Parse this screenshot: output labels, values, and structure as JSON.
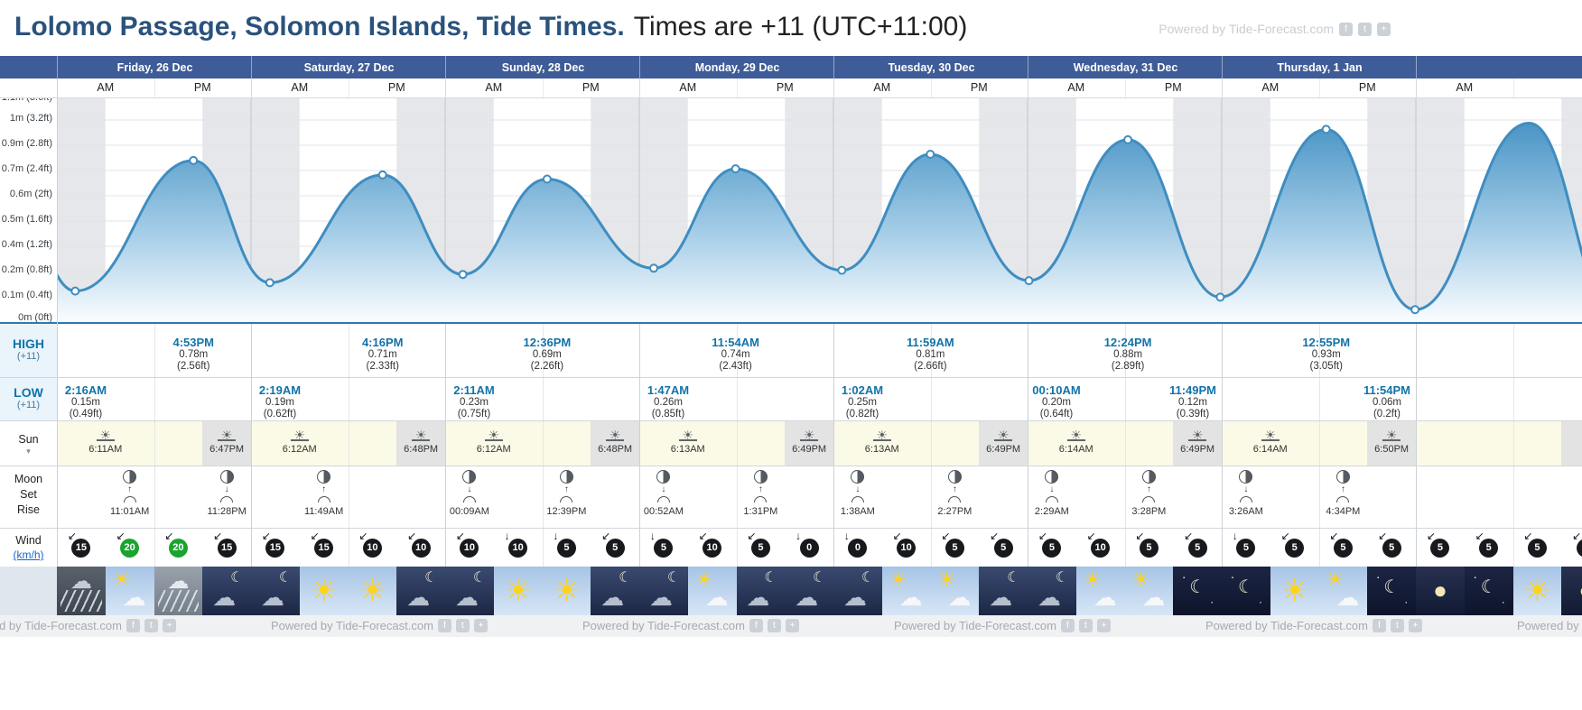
{
  "page": {
    "title_main": "Lolomo Passage, Solomon Islands, Tide Times.",
    "title_suffix": "Times are +11 (UTC+11:00)",
    "watermark": "Powered by Tide-Forecast.com"
  },
  "colors": {
    "header_bg": "#3e5c97",
    "accent_blue": "#1173a9",
    "curve_blue": "#3f8dc0",
    "wind_green": "#1aa42f",
    "wind_dark": "#17191c",
    "night_band": "#e6e7ea",
    "sun_row_bg": "#fbfae6",
    "sun_night_seg": "#e3e3e3",
    "tide_label_bg": "#e9f4fb"
  },
  "days": [
    "Friday, 26 Dec",
    "Saturday, 27 Dec",
    "Sunday, 28 Dec",
    "Monday, 29 Dec",
    "Tuesday, 30 Dec",
    "Wednesday, 31 Dec",
    "Thursday, 1 Jan"
  ],
  "ampm_labels": [
    "AM",
    "PM"
  ],
  "chart_data": {
    "type": "area",
    "title": "Tide height curve for Lolomo Passage",
    "xlabel": "Time (7 days, AM/PM per day)",
    "ylabel": "Tide height",
    "ylim_m": [
      0,
      1.1
    ],
    "days_shown": 7.86,
    "grid": true,
    "axis_labels": [
      "1.1m (3.6ft)",
      "1m (3.2ft)",
      "0.9m (2.8ft)",
      "0.7m (2.4ft)",
      "0.6m (2ft)",
      "0.5m (1.6ft)",
      "0.4m (1.2ft)",
      "0.2m (0.8ft)",
      "0.1m (0.4ft)",
      "0m (0ft)"
    ],
    "extremes": [
      {
        "day": -1,
        "hour": 17.5,
        "height_m": 0.76,
        "kind": "high",
        "time": "",
        "inferred": true
      },
      {
        "day": 0,
        "hour": 2.267,
        "height_m": 0.15,
        "kind": "low",
        "time": "2:16AM"
      },
      {
        "day": 0,
        "hour": 16.883,
        "height_m": 0.78,
        "kind": "high",
        "time": "4:53PM"
      },
      {
        "day": 1,
        "hour": 2.317,
        "height_m": 0.19,
        "kind": "low",
        "time": "2:19AM"
      },
      {
        "day": 1,
        "hour": 16.267,
        "height_m": 0.71,
        "kind": "high",
        "time": "4:16PM"
      },
      {
        "day": 2,
        "hour": 2.183,
        "height_m": 0.23,
        "kind": "low",
        "time": "2:11AM"
      },
      {
        "day": 2,
        "hour": 12.6,
        "height_m": 0.69,
        "kind": "high",
        "time": "12:36PM"
      },
      {
        "day": 3,
        "hour": 1.783,
        "height_m": 0.26,
        "kind": "low",
        "time": "1:47AM"
      },
      {
        "day": 3,
        "hour": 11.9,
        "height_m": 0.74,
        "kind": "high",
        "time": "11:54AM"
      },
      {
        "day": 4,
        "hour": 1.033,
        "height_m": 0.25,
        "kind": "low",
        "time": "1:02AM"
      },
      {
        "day": 4,
        "hour": 11.983,
        "height_m": 0.81,
        "kind": "high",
        "time": "11:59AM"
      },
      {
        "day": 5,
        "hour": 0.167,
        "height_m": 0.2,
        "kind": "low",
        "time": "00:10AM"
      },
      {
        "day": 5,
        "hour": 12.4,
        "height_m": 0.88,
        "kind": "high",
        "time": "12:24PM"
      },
      {
        "day": 5,
        "hour": 23.817,
        "height_m": 0.12,
        "kind": "low",
        "time": "11:49PM"
      },
      {
        "day": 6,
        "hour": 12.917,
        "height_m": 0.93,
        "kind": "high",
        "time": "12:55PM"
      },
      {
        "day": 6,
        "hour": 23.9,
        "height_m": 0.06,
        "kind": "low",
        "time": "11:54PM"
      },
      {
        "day": 7,
        "hour": 14.0,
        "height_m": 0.96,
        "kind": "high",
        "time": "",
        "inferred": true
      },
      {
        "day": 7,
        "hour": 25.0,
        "height_m": 0.02,
        "kind": "low",
        "time": "",
        "inferred": true
      }
    ]
  },
  "tide_table": {
    "high_label": "HIGH",
    "low_label": "LOW",
    "tz": "(+11)",
    "high": [
      {
        "day": 0,
        "hour": 16.883,
        "time": "4:53PM",
        "height": "0.78m",
        "height_ft": "(2.56ft)"
      },
      {
        "day": 1,
        "hour": 16.267,
        "time": "4:16PM",
        "height": "0.71m",
        "height_ft": "(2.33ft)"
      },
      {
        "day": 2,
        "hour": 12.6,
        "time": "12:36PM",
        "height": "0.69m",
        "height_ft": "(2.26ft)"
      },
      {
        "day": 3,
        "hour": 11.9,
        "time": "11:54AM",
        "height": "0.74m",
        "height_ft": "(2.43ft)"
      },
      {
        "day": 4,
        "hour": 11.983,
        "time": "11:59AM",
        "height": "0.81m",
        "height_ft": "(2.66ft)"
      },
      {
        "day": 5,
        "hour": 12.4,
        "time": "12:24PM",
        "height": "0.88m",
        "height_ft": "(2.89ft)"
      },
      {
        "day": 6,
        "hour": 12.917,
        "time": "12:55PM",
        "height": "0.93m",
        "height_ft": "(3.05ft)"
      }
    ],
    "low": [
      {
        "day": 0,
        "hour": 2.267,
        "time": "2:16AM",
        "height": "0.15m",
        "height_ft": "(0.49ft)"
      },
      {
        "day": 1,
        "hour": 2.317,
        "time": "2:19AM",
        "height": "0.19m",
        "height_ft": "(0.62ft)"
      },
      {
        "day": 2,
        "hour": 2.183,
        "time": "2:11AM",
        "height": "0.23m",
        "height_ft": "(0.75ft)"
      },
      {
        "day": 3,
        "hour": 1.783,
        "time": "1:47AM",
        "height": "0.26m",
        "height_ft": "(0.85ft)"
      },
      {
        "day": 4,
        "hour": 1.033,
        "time": "1:02AM",
        "height": "0.25m",
        "height_ft": "(0.82ft)"
      },
      {
        "day": 5,
        "hour": 0.167,
        "time": "00:10AM",
        "height": "0.20m",
        "height_ft": "(0.64ft)"
      },
      {
        "day": 5,
        "hour": 23.817,
        "time": "11:49PM",
        "height": "0.12m",
        "height_ft": "(0.39ft)"
      },
      {
        "day": 6,
        "hour": 23.9,
        "time": "11:54PM",
        "height": "0.06m",
        "height_ft": "(0.2ft)"
      }
    ]
  },
  "sun": {
    "label": "Sun",
    "rise": [
      "6:11AM",
      "6:12AM",
      "6:12AM",
      "6:13AM",
      "6:13AM",
      "6:14AM",
      "6:14AM"
    ],
    "set": [
      "6:47PM",
      "6:48PM",
      "6:48PM",
      "6:49PM",
      "6:49PM",
      "6:49PM",
      "6:50PM"
    ]
  },
  "moon": {
    "labels": [
      "Moon",
      "Set",
      "Rise"
    ],
    "events": [
      {
        "day": 0,
        "quarter": 1,
        "time": "11:01AM",
        "kind": "rise"
      },
      {
        "day": 0,
        "quarter": 3,
        "time": "11:28PM",
        "kind": "set"
      },
      {
        "day": 1,
        "quarter": 1,
        "time": "11:49AM",
        "kind": "rise"
      },
      {
        "day": 2,
        "quarter": 0,
        "time": "00:09AM",
        "kind": "set"
      },
      {
        "day": 2,
        "quarter": 2,
        "time": "12:39PM",
        "kind": "rise"
      },
      {
        "day": 3,
        "quarter": 0,
        "time": "00:52AM",
        "kind": "set"
      },
      {
        "day": 3,
        "quarter": 2,
        "time": "1:31PM",
        "kind": "rise"
      },
      {
        "day": 4,
        "quarter": 0,
        "time": "1:38AM",
        "kind": "set"
      },
      {
        "day": 4,
        "quarter": 2,
        "time": "2:27PM",
        "kind": "rise"
      },
      {
        "day": 5,
        "quarter": 0,
        "time": "2:29AM",
        "kind": "set"
      },
      {
        "day": 5,
        "quarter": 2,
        "time": "3:28PM",
        "kind": "rise"
      },
      {
        "day": 6,
        "quarter": 0,
        "time": "3:26AM",
        "kind": "set"
      },
      {
        "day": 6,
        "quarter": 2,
        "time": "4:34PM",
        "kind": "rise"
      }
    ]
  },
  "wind": {
    "label": "Wind",
    "unit": "(km/h)",
    "values": [
      {
        "v": 15,
        "dir": "↙",
        "color": "dark"
      },
      {
        "v": 20,
        "dir": "↙",
        "color": "green"
      },
      {
        "v": 20,
        "dir": "↙",
        "color": "green"
      },
      {
        "v": 15,
        "dir": "↙",
        "color": "dark"
      },
      {
        "v": 15,
        "dir": "↙",
        "color": "dark"
      },
      {
        "v": 15,
        "dir": "↙",
        "color": "dark"
      },
      {
        "v": 10,
        "dir": "↙",
        "color": "dark"
      },
      {
        "v": 10,
        "dir": "↙",
        "color": "dark"
      },
      {
        "v": 10,
        "dir": "↙",
        "color": "dark"
      },
      {
        "v": 10,
        "dir": "↓",
        "color": "dark"
      },
      {
        "v": 5,
        "dir": "↓",
        "color": "dark"
      },
      {
        "v": 5,
        "dir": "↙",
        "color": "dark"
      },
      {
        "v": 5,
        "dir": "↓",
        "color": "dark"
      },
      {
        "v": 10,
        "dir": "↙",
        "color": "dark"
      },
      {
        "v": 5,
        "dir": "↙",
        "color": "dark"
      },
      {
        "v": 0,
        "dir": "↓",
        "color": "dark"
      },
      {
        "v": 0,
        "dir": "↓",
        "color": "dark"
      },
      {
        "v": 10,
        "dir": "↙",
        "color": "dark"
      },
      {
        "v": 5,
        "dir": "↙",
        "color": "dark"
      },
      {
        "v": 5,
        "dir": "↙",
        "color": "dark"
      },
      {
        "v": 5,
        "dir": "↙",
        "color": "dark"
      },
      {
        "v": 10,
        "dir": "↙",
        "color": "dark"
      },
      {
        "v": 5,
        "dir": "↙",
        "color": "dark"
      },
      {
        "v": 5,
        "dir": "↙",
        "color": "dark"
      },
      {
        "v": 5,
        "dir": "↓",
        "color": "dark"
      },
      {
        "v": 5,
        "dir": "↙",
        "color": "dark"
      },
      {
        "v": 5,
        "dir": "↙",
        "color": "dark"
      },
      {
        "v": 5,
        "dir": "↙",
        "color": "dark"
      },
      {
        "v": 5,
        "dir": "↙",
        "color": "dark"
      },
      {
        "v": 5,
        "dir": "↙",
        "color": "dark"
      },
      {
        "v": 5,
        "dir": "↙",
        "color": "dark"
      },
      {
        "v": 5,
        "dir": "↙",
        "color": "dark"
      }
    ]
  },
  "weather": {
    "tiles": [
      "rain-dark",
      "sun-cloud",
      "rain-gray",
      "cloud-moon",
      "cloud-moon",
      "sun",
      "sun",
      "cloud-moon",
      "cloud-moon",
      "sun",
      "sun",
      "cloud-moon",
      "cloud-moon",
      "sun-cloud",
      "cloud-moon",
      "cloud-moon",
      "cloud-moon",
      "sun-cloud",
      "sun-cloud",
      "cloud-moon",
      "cloud-moon",
      "sun-cloud",
      "sun-cloud",
      "clear-night",
      "clear-night",
      "sun",
      "sun-cloud",
      "clear-night",
      "moon",
      "clear-night",
      "sun",
      "moon"
    ]
  }
}
